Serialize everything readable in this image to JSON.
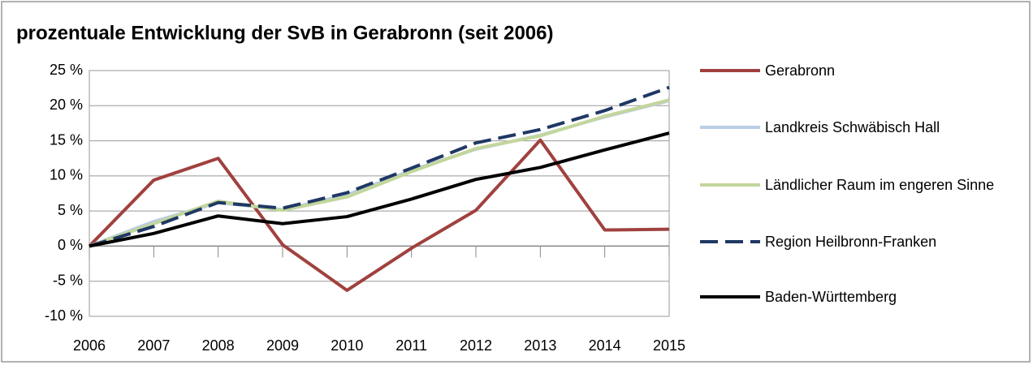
{
  "chart_data": {
    "type": "line",
    "title": "prozentuale Entwicklung der SvB in Gerabronn (seit 2006)",
    "categories": [
      "2006",
      "2007",
      "2008",
      "2009",
      "2010",
      "2011",
      "2012",
      "2013",
      "2014",
      "2015"
    ],
    "series": [
      {
        "name": "Gerabronn",
        "color": "#a0413e",
        "dash": false,
        "values": [
          0,
          9.4,
          12.5,
          0.2,
          -6.3,
          -0.3,
          5.1,
          15.1,
          2.3,
          2.4
        ]
      },
      {
        "name": "Landkreis Schwäbisch Hall",
        "color": "#b9cde5",
        "dash": false,
        "values": [
          0,
          3.5,
          6.2,
          5.2,
          7.3,
          10.8,
          13.8,
          15.8,
          18.4,
          20.7
        ]
      },
      {
        "name": "Ländlicher Raum im engeren Sinne",
        "color": "#c3d69b",
        "dash": false,
        "values": [
          0,
          3.2,
          6.4,
          5.1,
          7.0,
          10.6,
          13.9,
          15.7,
          18.5,
          20.8
        ]
      },
      {
        "name": "Region Heilbronn-Franken",
        "color": "#1f3864",
        "dash": true,
        "values": [
          0,
          2.8,
          6.2,
          5.4,
          7.6,
          11.1,
          14.7,
          16.6,
          19.3,
          22.6
        ]
      },
      {
        "name": "Baden-Württemberg",
        "color": "#000000",
        "dash": false,
        "values": [
          0,
          1.8,
          4.3,
          3.2,
          4.2,
          6.7,
          9.5,
          11.2,
          13.7,
          16.1
        ]
      }
    ],
    "ylim": [
      -10,
      25
    ],
    "yticks": [
      {
        "value": -10,
        "label": "-10 %"
      },
      {
        "value": -5,
        "label": "-5 %"
      },
      {
        "value": 0,
        "label": "0 %"
      },
      {
        "value": 5,
        "label": "5 %"
      },
      {
        "value": 10,
        "label": "10 %"
      },
      {
        "value": 15,
        "label": "15 %"
      },
      {
        "value": 20,
        "label": "20 %"
      },
      {
        "value": 25,
        "label": "25 %"
      }
    ],
    "grid": true,
    "legend": "right"
  }
}
